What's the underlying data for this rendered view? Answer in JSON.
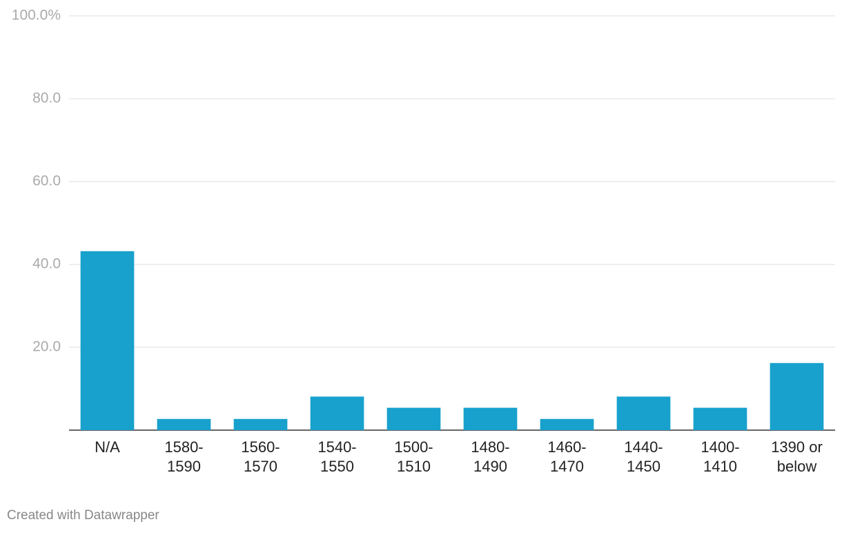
{
  "chart_data": {
    "type": "bar",
    "categories": [
      "N/A",
      "1580-1590",
      "1560-1570",
      "1540-1550",
      "1500-1510",
      "1480-1490",
      "1460-1470",
      "1440-1450",
      "1400-1410",
      "1390 or below"
    ],
    "values": [
      43.2,
      2.7,
      2.7,
      8.1,
      5.4,
      5.4,
      2.7,
      8.1,
      5.4,
      16.2
    ],
    "color": "#18a1cd",
    "ylim": [
      0,
      100
    ],
    "yticks": [
      {
        "value": 20,
        "label": "20.0"
      },
      {
        "value": 40,
        "label": "40.0"
      },
      {
        "value": 60,
        "label": "60.0"
      },
      {
        "value": 80,
        "label": "80.0"
      },
      {
        "value": 100,
        "label": "100.0%"
      }
    ],
    "grid": true,
    "footer": "Created with Datawrapper"
  }
}
